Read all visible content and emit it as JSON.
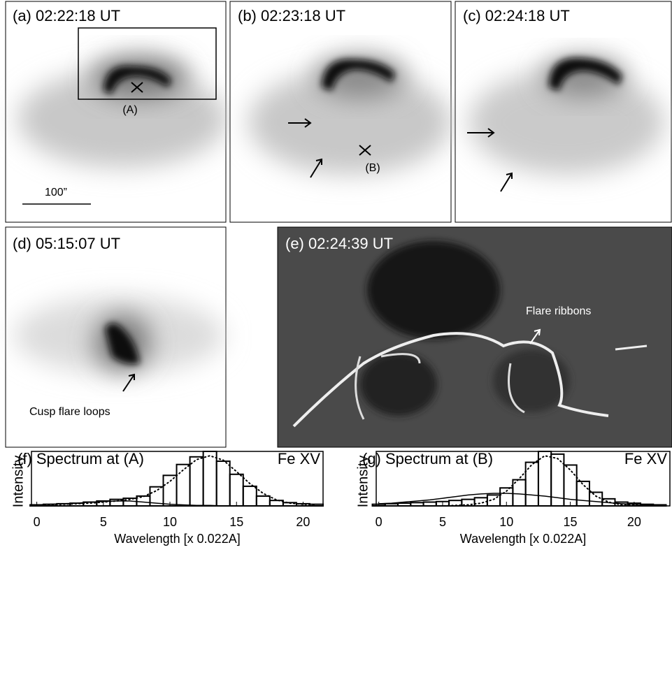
{
  "panels": [
    {
      "label": "(a) 02:22:18 UT",
      "annotations": [
        "(A)",
        "100”"
      ]
    },
    {
      "label": "(b) 02:23:18 UT",
      "annotations": [
        "(B)"
      ]
    },
    {
      "label": "(c) 02:24:18 UT",
      "annotations": []
    },
    {
      "label": "(d) 05:15:07 UT",
      "annotations": [
        "Cusp flare loops"
      ]
    },
    {
      "label": "(e) 02:24:39 UT",
      "annotations": [
        "Flare ribbons"
      ]
    }
  ],
  "chart_data": [
    {
      "type": "histogram",
      "title": "(f) Spectrum at (A)",
      "annotation": "Fe XV",
      "ylabel": "Intensity",
      "xlabel": "Wavelength [x 0.022A]",
      "bins": [
        -0.5,
        0.5,
        1.5,
        2.5,
        3.5,
        4.5,
        5.5,
        6.5,
        7.5,
        8.5,
        9.5,
        10.5,
        11.5,
        12.5,
        13.5,
        14.5,
        15.5,
        16.5,
        17.5,
        18.5,
        19.5,
        20.5,
        21.5
      ],
      "counts": [
        0.02,
        0.03,
        0.04,
        0.05,
        0.07,
        0.09,
        0.12,
        0.14,
        0.18,
        0.35,
        0.56,
        0.76,
        0.9,
        1.0,
        0.82,
        0.58,
        0.36,
        0.18,
        0.1,
        0.06,
        0.04,
        0.03
      ],
      "x": [
        0,
        1,
        2,
        3,
        4,
        5,
        6,
        7,
        8,
        9,
        10,
        11,
        12,
        13,
        14,
        15,
        16,
        17,
        18,
        19,
        20,
        21
      ],
      "series": [
        {
          "style": "dotted",
          "color": "#000000",
          "values": [
            0.02,
            0.02,
            0.03,
            0.04,
            0.05,
            0.07,
            0.09,
            0.12,
            0.17,
            0.28,
            0.45,
            0.66,
            0.85,
            0.92,
            0.84,
            0.63,
            0.41,
            0.23,
            0.11,
            0.05,
            0.03,
            0.02
          ]
        },
        {
          "style": "solid",
          "color": "#000000",
          "values": [
            0.02,
            0.03,
            0.04,
            0.05,
            0.07,
            0.08,
            0.09,
            0.09,
            0.07,
            0.05,
            0.03,
            0.02,
            0.01,
            0.01,
            0.0,
            0.0,
            0.0,
            0.0,
            0.0,
            0.0,
            0.0,
            0.0
          ]
        }
      ],
      "xlim": [
        -0.4,
        21.5
      ],
      "ylim": [
        0,
        1.0
      ],
      "xticks": [
        0,
        5,
        10,
        15,
        20
      ]
    },
    {
      "type": "histogram",
      "title": "(g) Spectrum at (B)",
      "annotation": "Fe XV",
      "ylabel": "Intensity",
      "xlabel": "Wavelength [x 0.022A]",
      "bins": [
        -0.5,
        0.5,
        1.5,
        2.5,
        3.5,
        4.5,
        5.5,
        6.5,
        7.5,
        8.5,
        9.5,
        10.5,
        11.5,
        12.5,
        13.5,
        14.5,
        15.5,
        16.5,
        17.5,
        18.5,
        19.5,
        20.5,
        21.5,
        22.5
      ],
      "counts": [
        0.03,
        0.04,
        0.05,
        0.06,
        0.07,
        0.08,
        0.1,
        0.12,
        0.15,
        0.2,
        0.33,
        0.48,
        0.8,
        1.0,
        0.95,
        0.75,
        0.45,
        0.25,
        0.13,
        0.07,
        0.05,
        0.03,
        0.02
      ],
      "x": [
        0,
        1,
        2,
        3,
        4,
        5,
        6,
        7,
        8,
        9,
        10,
        11,
        12,
        13,
        14,
        15,
        16,
        17,
        18,
        19,
        20,
        21,
        22
      ],
      "series": [
        {
          "style": "dotted",
          "color": "#000000",
          "values": [
            0.0,
            0.0,
            0.0,
            0.0,
            0.0,
            0.0,
            0.01,
            0.02,
            0.05,
            0.12,
            0.27,
            0.5,
            0.76,
            0.92,
            0.87,
            0.66,
            0.39,
            0.18,
            0.07,
            0.02,
            0.01,
            0.0,
            0.0
          ]
        },
        {
          "style": "solid",
          "color": "#000000",
          "values": [
            0.04,
            0.05,
            0.07,
            0.09,
            0.11,
            0.14,
            0.17,
            0.2,
            0.22,
            0.23,
            0.23,
            0.22,
            0.2,
            0.18,
            0.15,
            0.12,
            0.1,
            0.08,
            0.06,
            0.04,
            0.03,
            0.02,
            0.02
          ]
        }
      ],
      "xlim": [
        -0.2,
        22.8
      ],
      "ylim": [
        0,
        1.0
      ],
      "xticks": [
        0,
        5,
        10,
        15,
        20
      ]
    }
  ]
}
